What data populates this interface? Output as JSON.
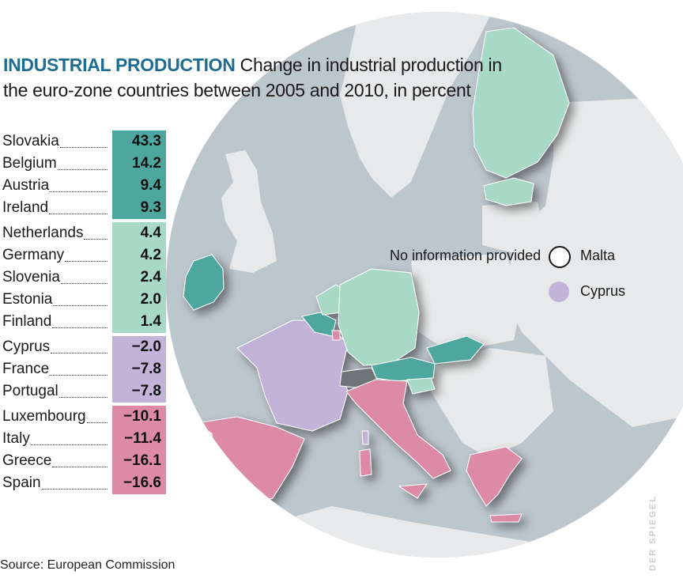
{
  "title": {
    "bold": "INDUSTRIAL PRODUCTION",
    "text": "Change in industrial production in the euro-zone countries between 2005 and 2010, in percent"
  },
  "colors": {
    "high": "#4da79e",
    "mid": "#a8d8c6",
    "neg_small": "#c3b3d8",
    "neg_large": "#dc8aa5",
    "no_info": "#ffffff",
    "switzerland": "#6e7479",
    "non_eurozone": "#e7e9ea",
    "sea": "#bcc6cd"
  },
  "groups": [
    {
      "color": "#4da79e",
      "rows": [
        {
          "country": "Slovakia",
          "value": "43.3"
        },
        {
          "country": "Belgium",
          "value": "14.2"
        },
        {
          "country": "Austria",
          "value": "9.4"
        },
        {
          "country": "Ireland",
          "value": "9.3"
        }
      ]
    },
    {
      "color": "#a8d8c6",
      "rows": [
        {
          "country": "Netherlands",
          "value": "4.4"
        },
        {
          "country": "Germany",
          "value": "4.2"
        },
        {
          "country": "Slovenia",
          "value": "2.4"
        },
        {
          "country": "Estonia",
          "value": "2.0"
        },
        {
          "country": "Finland",
          "value": "1.4"
        }
      ]
    },
    {
      "color": "#c3b3d8",
      "rows": [
        {
          "country": "Cyprus",
          "value": "−2.0"
        },
        {
          "country": "France",
          "value": "−7.8"
        },
        {
          "country": "Portugal",
          "value": "−7.8"
        }
      ]
    },
    {
      "color": "#dc8aa5",
      "rows": [
        {
          "country": "Luxembourg",
          "value": "−10.1"
        },
        {
          "country": "Italy",
          "value": "−11.4"
        },
        {
          "country": "Greece",
          "value": "−16.1"
        },
        {
          "country": "Spain",
          "value": "−16.6"
        }
      ]
    }
  ],
  "legend": {
    "no_info_label": "No information provided",
    "malta_label": "Malta",
    "cyprus_label": "Cyprus"
  },
  "source": "Source: European Commission",
  "watermark": "DER SPIEGEL"
}
